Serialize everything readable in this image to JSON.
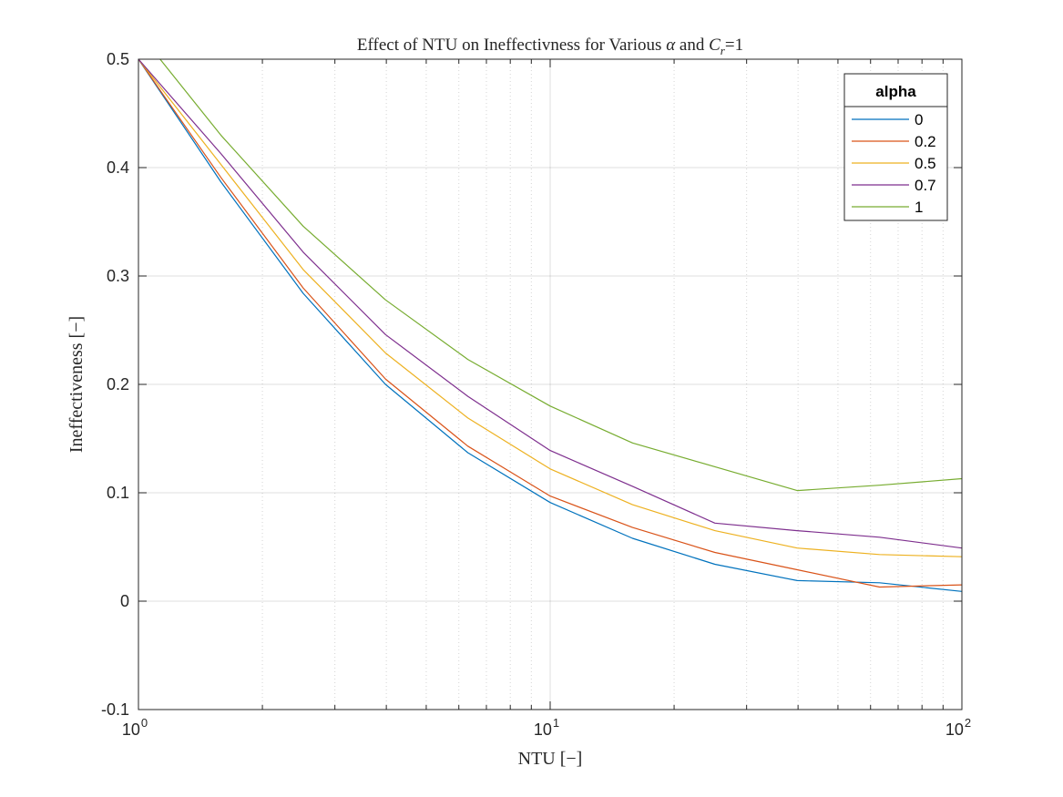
{
  "chart_data": {
    "type": "line",
    "title": {
      "prefix": "Effect of NTU on Ineffectivness for Various ",
      "alpha_symbol": "α",
      "middle": " and ",
      "cr_symbol": "C",
      "cr_subscript": "r",
      "suffix": "=1"
    },
    "xlabel": "NTU [−]",
    "ylabel": "Ineffectiveness [−]",
    "x_scale": "log",
    "xlim": [
      1,
      100
    ],
    "ylim": [
      -0.1,
      0.5
    ],
    "grid": true,
    "x_ticks": [
      {
        "value": 1,
        "base": "10",
        "exp": "0"
      },
      {
        "value": 10,
        "base": "10",
        "exp": "1"
      },
      {
        "value": 100,
        "base": "10",
        "exp": "2"
      }
    ],
    "y_ticks": [
      "-0.1",
      "0",
      "0.1",
      "0.2",
      "0.3",
      "0.4",
      "0.5"
    ],
    "legend": {
      "title": "alpha",
      "location": "top-right"
    },
    "x": [
      1,
      1.585,
      2.512,
      3.981,
      6.31,
      10,
      15.85,
      25.12,
      39.81,
      63.1,
      100
    ],
    "series": [
      {
        "name": "0",
        "color": "#0072BD",
        "values": [
          0.5,
          0.387,
          0.284,
          0.2,
          0.137,
          0.091,
          0.058,
          0.034,
          0.019,
          0.017,
          0.009
        ]
      },
      {
        "name": "0.2",
        "color": "#D95319",
        "values": [
          0.5,
          0.391,
          0.289,
          0.205,
          0.143,
          0.097,
          0.068,
          0.045,
          0.029,
          0.013,
          0.015
        ]
      },
      {
        "name": "0.5",
        "color": "#EDB120",
        "values": [
          0.5,
          0.403,
          0.306,
          0.229,
          0.169,
          0.122,
          0.089,
          0.065,
          0.049,
          0.043,
          0.041
        ]
      },
      {
        "name": "0.7",
        "color": "#7E2F8E",
        "values": [
          0.5,
          0.413,
          0.322,
          0.246,
          0.189,
          0.139,
          0.106,
          0.072,
          0.065,
          0.059,
          0.049
        ]
      },
      {
        "name": "1",
        "color": "#77AC30",
        "values": [
          0.525,
          0.43,
          0.346,
          0.278,
          0.223,
          0.18,
          0.146,
          0.124,
          0.102,
          0.107,
          0.113
        ]
      }
    ]
  }
}
